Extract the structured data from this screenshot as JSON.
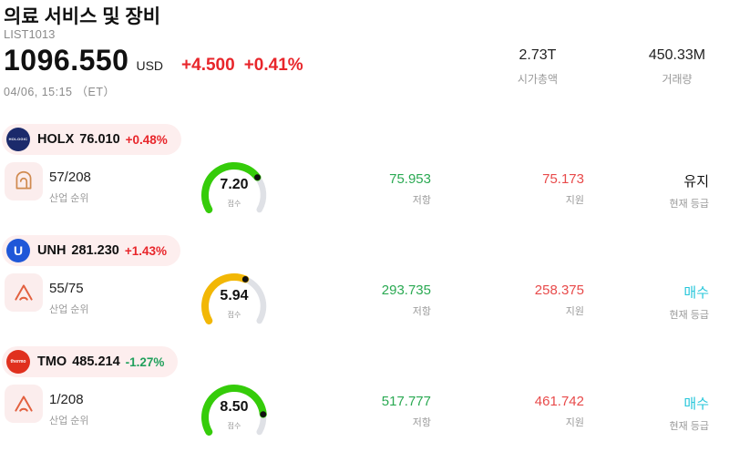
{
  "header": {
    "title": "의료 서비스 및 장비",
    "list_id": "LIST1013",
    "price": "1096.550",
    "currency": "USD",
    "change_abs": "+4.500",
    "change_pct": "+0.41%",
    "datetime": "04/06, 15:15 （ET）",
    "stats": [
      {
        "value": "2.73T",
        "label": "시가총액"
      },
      {
        "value": "450.33M",
        "label": "거래량"
      }
    ]
  },
  "labels": {
    "rank": "산업 순위",
    "score": "점수",
    "resistance": "저항",
    "support": "지원",
    "grade": "현재 등급"
  },
  "colors": {
    "up": "#e8262b",
    "down": "#21a05c",
    "resistance": "#2aa952",
    "support": "#e84a4a",
    "buy": "#26c6da",
    "hold": "#111111",
    "header_change": "#e8262b",
    "gauge_track": "#dfe1e6"
  },
  "stocks": [
    {
      "ticker": "HOLX",
      "price": "76.010",
      "change": "+0.48%",
      "change_color": "#e8262b",
      "logo_text": "HOLOGIC",
      "logo_bg": "#1b2a6b",
      "rank": "57/208",
      "score": "7.20",
      "score_value": 7.2,
      "gauge_color": "#35cc0a",
      "resistance": "75.953",
      "support": "75.173",
      "grade": "유지",
      "grade_color": "#111111"
    },
    {
      "ticker": "UNH",
      "price": "281.230",
      "change": "+1.43%",
      "change_color": "#e8262b",
      "logo_text": "U",
      "logo_bg": "#1f57d8",
      "rank": "55/75",
      "score": "5.94",
      "score_value": 5.94,
      "gauge_color": "#f2b705",
      "resistance": "293.735",
      "support": "258.375",
      "grade": "매수",
      "grade_color": "#26c6da"
    },
    {
      "ticker": "TMO",
      "price": "485.214",
      "change": "-1.27%",
      "change_color": "#21a05c",
      "logo_text": "thermo",
      "logo_bg": "#e0301e",
      "rank": "1/208",
      "score": "8.50",
      "score_value": 8.5,
      "gauge_color": "#35cc0a",
      "resistance": "517.777",
      "support": "461.742",
      "grade": "매수",
      "grade_color": "#26c6da"
    }
  ]
}
